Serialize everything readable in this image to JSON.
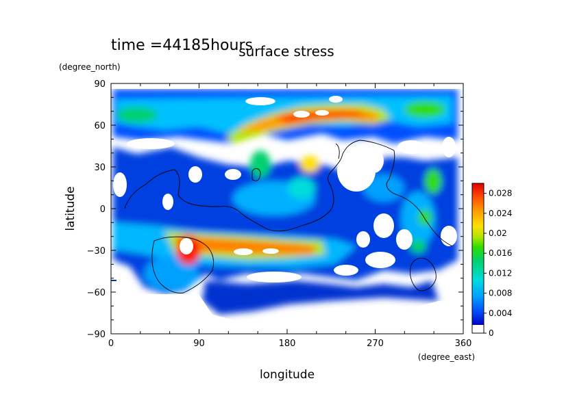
{
  "figure": {
    "time_label": "time =44185hours",
    "title": "surface stress"
  },
  "chart_data": {
    "type": "heatmap",
    "title": "surface stress",
    "subtitle": "time =44185hours",
    "xlabel": "longitude",
    "ylabel": "latitude",
    "x_unit": "(degree_east)",
    "y_unit": "(degree_north)",
    "xlim": [
      0,
      360
    ],
    "ylim": [
      -90,
      90
    ],
    "x_ticks": [
      0,
      90,
      180,
      270,
      360
    ],
    "y_ticks": [
      -90,
      -60,
      -30,
      0,
      30,
      60,
      90
    ],
    "x_tick_labels": [
      "0",
      "90",
      "180",
      "270",
      "360"
    ],
    "y_tick_labels": [
      "−90",
      "−60",
      "−30",
      "0",
      "30",
      "60",
      "90"
    ],
    "colorbar": {
      "min": 0,
      "max": 0.03,
      "tick_values": [
        0,
        0.004,
        0.008,
        0.012,
        0.016,
        0.02,
        0.024,
        0.028
      ],
      "tick_labels": [
        "0",
        "0.004",
        "0.008",
        "0.012",
        "0.016",
        "0.02",
        "0.024",
        "0.028"
      ]
    },
    "grid": false,
    "colormap": [
      "#0000c8",
      "#0050ff",
      "#00a0ff",
      "#00dcdc",
      "#00d070",
      "#30dc00",
      "#b0e600",
      "#ffe000",
      "#ffa000",
      "#ff5000",
      "#e00000"
    ],
    "field_features": [
      {
        "lon": 215,
        "lat": 65,
        "value": 0.03
      },
      {
        "lon": 140,
        "lat": 58,
        "value": 0.024
      },
      {
        "lon": 270,
        "lat": 62,
        "value": 0.022
      },
      {
        "lon": 80,
        "lat": -30,
        "value": 0.03
      },
      {
        "lon": 150,
        "lat": -28,
        "value": 0.026
      },
      {
        "lon": 205,
        "lat": 30,
        "value": 0.022
      },
      {
        "lon": 330,
        "lat": 20,
        "value": 0.016
      },
      {
        "lon": 325,
        "lat": -5,
        "value": 0.016
      },
      {
        "lon": 30,
        "lat": 65,
        "value": 0.014
      },
      {
        "lon": 150,
        "lat": 25,
        "value": 0.014
      },
      {
        "lon": 170,
        "lat": 40,
        "value": 0.012
      },
      {
        "lon": 100,
        "lat": 5,
        "value": 0.01
      }
    ]
  }
}
